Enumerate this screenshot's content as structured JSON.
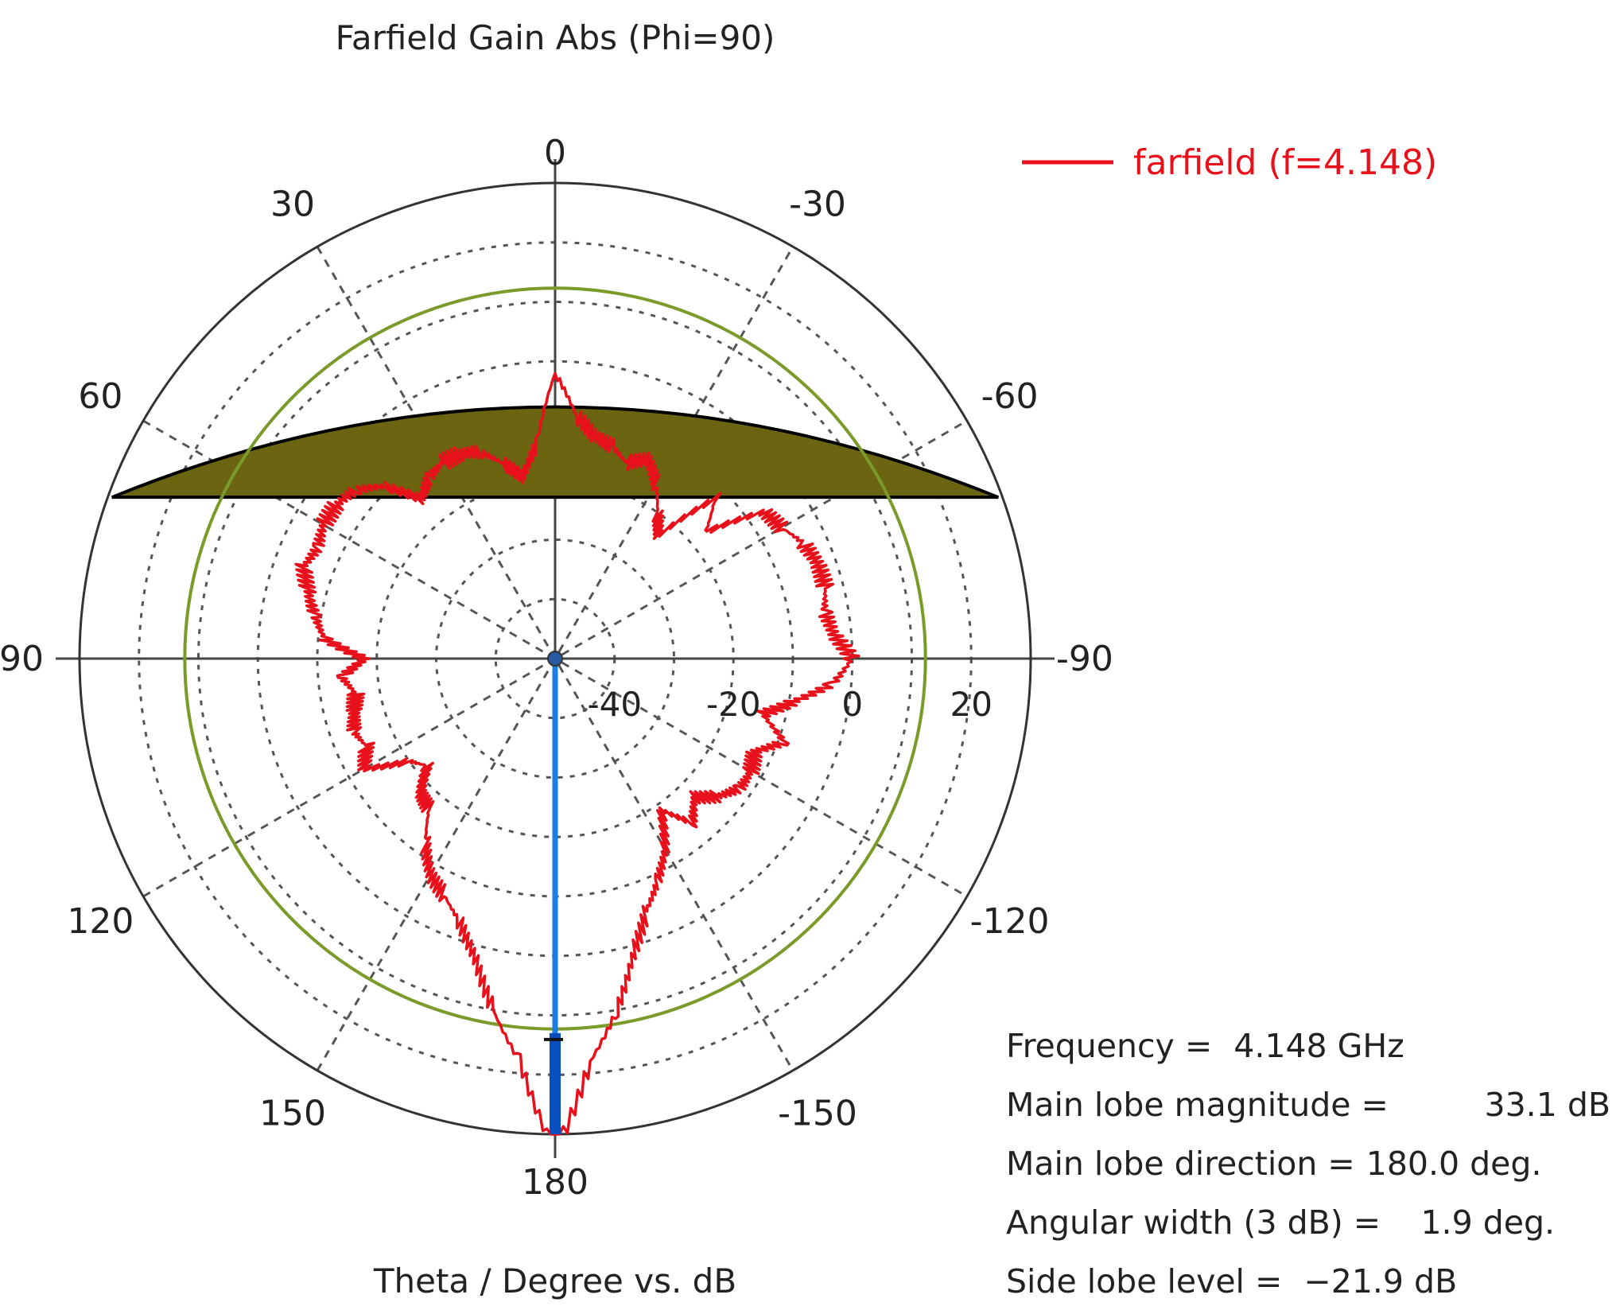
{
  "chart_data": {
    "type": "polar-line",
    "title": "Farfield Gain Abs (Phi=90)",
    "xlabel": "Theta / Degree vs. dB",
    "angle_ticks": [
      "0",
      "30",
      "-30",
      "60",
      "-60",
      "90",
      "-90",
      "120",
      "-120",
      "150",
      "-150",
      "180"
    ],
    "angle_tick_values": [
      0,
      30,
      -30,
      60,
      -60,
      90,
      -90,
      120,
      -120,
      150,
      -150,
      180
    ],
    "radial_ticks": [
      "-40",
      "-20",
      "0",
      "20"
    ],
    "radial_tick_values": [
      -40,
      -20,
      0,
      20
    ],
    "rlim": [
      -50,
      30
    ],
    "grid": true,
    "legend_position": "top-right",
    "series": [
      {
        "name": "farfield (f=4.148)",
        "color": "#e8101a",
        "theta": [
          0,
          5,
          10,
          15,
          20,
          25,
          30,
          35,
          40,
          45,
          50,
          55,
          60,
          65,
          70,
          75,
          80,
          85,
          90,
          95,
          100,
          105,
          110,
          115,
          120,
          125,
          130,
          135,
          140,
          145,
          150,
          155,
          160,
          165,
          170,
          175,
          180,
          -175,
          -170,
          -165,
          -160,
          -155,
          -150,
          -145,
          -140,
          -135,
          -130,
          -125,
          -120,
          -115,
          -110,
          -105,
          -100,
          -95,
          -90,
          -85,
          -80,
          -75,
          -70,
          -65,
          -60,
          -55,
          -50,
          -45,
          -40,
          -35,
          -30,
          -25,
          -20,
          -15,
          -10,
          -5
        ],
        "gain_db": [
          -2,
          -14,
          -19,
          -16,
          -13,
          -12,
          -12,
          -13,
          -15,
          -9,
          -6,
          -5,
          -5,
          -6,
          -5,
          -7,
          -9,
          -11,
          -18,
          -14,
          -16,
          -15,
          -14,
          -15,
          -13,
          -20,
          -22,
          -18,
          -17,
          -12,
          -8,
          -6,
          -3,
          2,
          10,
          18,
          33,
          18,
          10,
          1,
          -5,
          -9,
          -13,
          -19,
          -14,
          -17,
          -14,
          -12,
          -12,
          -13,
          -9,
          -14,
          -9,
          -3,
          0,
          -3,
          -4,
          -3,
          -3,
          -4,
          -6,
          -7,
          -17,
          -12,
          -23,
          -20,
          -16,
          -13,
          -15,
          -13,
          -12,
          -9
        ]
      }
    ],
    "main_lobe_direction_deg": 180,
    "main_lobe_magnitude_db": 33.1,
    "side_lobe_level_db": -21.9,
    "reference_circle_db": 12.3,
    "beam_color": "#1a7fe0",
    "circle_color": "#7a9a2a",
    "shaded_region_color": "#6b6410"
  },
  "info": {
    "frequency_key": "Frequency = ",
    "frequency_val": "4.148 GHz",
    "magnitude_key": "Main lobe magnitude =",
    "magnitude_val": "33.1 dB",
    "direction_key": "Main lobe direction =",
    "direction_val": "180.0 deg.",
    "width_key": "Angular width (3 dB) =",
    "width_val": "1.9 deg.",
    "sidelobe_key": "Side lobe level = ",
    "sidelobe_val": "−21.9 dB"
  }
}
